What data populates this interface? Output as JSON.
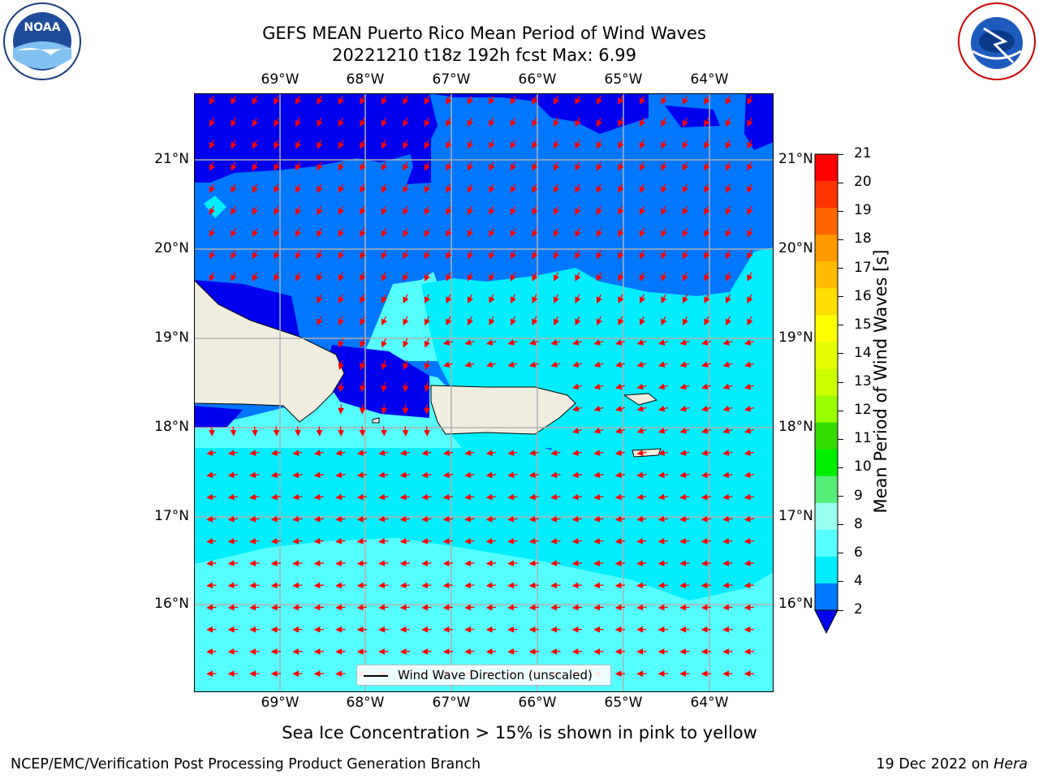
{
  "title_line1": "GEFS MEAN Puerto Rico Mean Period of Wind Waves",
  "title_line2": "20221210 t18z 192h fcst   Max: 6.99",
  "logos": {
    "left": "noa-logo-icon",
    "right": "nws-logo-icon"
  },
  "map": {
    "lon_ticks": [
      "69°W",
      "68°W",
      "67°W",
      "66°W",
      "65°W",
      "64°W"
    ],
    "lat_ticks": [
      "21°N",
      "20°N",
      "19°N",
      "18°N",
      "17°N",
      "16°N"
    ],
    "legend_label": "Wind Wave Direction (unscaled)",
    "arrow_color": "#ff0000",
    "land_color": "#efedde"
  },
  "colorbar": {
    "label": "Mean Period of Wind Waves [s]",
    "ticks": [
      "21",
      "20",
      "19",
      "18",
      "17",
      "16",
      "15",
      "14",
      "13",
      "12",
      "11",
      "10",
      "9",
      "8",
      "6",
      "4",
      "2"
    ],
    "colors": [
      "#ff0000",
      "#ff3300",
      "#ff6600",
      "#ff9900",
      "#ffbb00",
      "#ffdd00",
      "#ffff00",
      "#e6ff00",
      "#ccff00",
      "#99ff00",
      "#33dd00",
      "#00ee00",
      "#55ee77",
      "#99ffee",
      "#55ffff",
      "#00eeff",
      "#0077ff"
    ],
    "under_color": "#0000ee"
  },
  "caption": "Sea Ice Concentration > 15% is shown in pink to yellow",
  "footer_left": "NCEP/EMC/Verification Post Processing Product Generation Branch",
  "footer_right_date": "19 Dec 2022 on ",
  "footer_right_host": "Hera"
}
